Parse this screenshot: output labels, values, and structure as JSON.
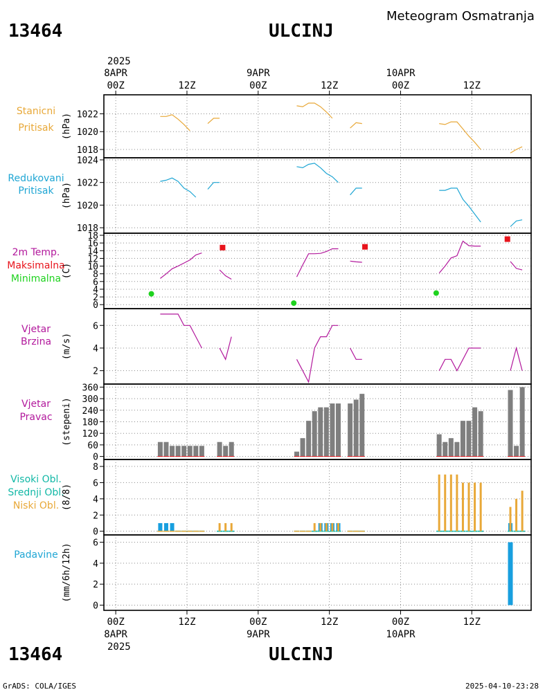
{
  "header": {
    "station_id": "13464",
    "station_name": "ULCINJ",
    "product": "Meteogram Osmatranja"
  },
  "footer": {
    "station_id": "13464",
    "station_name": "ULCINJ",
    "credit": "GrADS: COLA/IGES",
    "timestamp": "2025-04-10-23:28"
  },
  "time_axis": {
    "year": "2025",
    "date_labels": [
      "8APR",
      "9APR",
      "10APR"
    ],
    "hour_labels": [
      "00Z",
      "12Z",
      "00Z",
      "12Z",
      "00Z",
      "12Z"
    ]
  },
  "colors": {
    "orange": "#e8a838",
    "cyan": "#1fa6d4",
    "magenta": "#b2189c",
    "red": "#e8141c",
    "green": "#1ed21e",
    "gray": "#7f7f7f",
    "teal": "#12b8a6",
    "blue": "#189fdf"
  },
  "chart_data": [
    {
      "type": "line",
      "panel": "stanicni",
      "labels": [
        "Stanicni",
        "Pritisak"
      ],
      "unit": "(hPa)",
      "ylim": [
        1017.3,
        1023.9
      ],
      "yticks": [
        1018,
        1020,
        1022
      ],
      "series": [
        {
          "name": "Stanicni Pritisak",
          "color": "#e8a838",
          "segments": [
            [
              [
                7.5,
                1021.7
              ],
              [
                8.5,
                1021.7
              ],
              [
                9.5,
                1021.9
              ],
              [
                10.5,
                1021.4
              ],
              [
                11.5,
                1020.8
              ],
              [
                12.5,
                1020.1
              ]
            ],
            [
              [
                15.5,
                1020.9
              ],
              [
                16.5,
                1021.5
              ],
              [
                17.5,
                1021.5
              ]
            ],
            [
              [
                30.5,
                1022.9
              ],
              [
                31.5,
                1022.8
              ],
              [
                32.5,
                1023.2
              ],
              [
                33.5,
                1023.2
              ],
              [
                34.5,
                1022.8
              ],
              [
                35.5,
                1022.2
              ],
              [
                36.5,
                1021.5
              ]
            ],
            [
              [
                39.5,
                1020.4
              ],
              [
                40.5,
                1021.0
              ],
              [
                41.5,
                1020.9
              ]
            ],
            [
              [
                54.5,
                1020.9
              ],
              [
                55.5,
                1020.8
              ],
              [
                56.5,
                1021.1
              ],
              [
                57.5,
                1021.1
              ],
              [
                58.5,
                1020.3
              ],
              [
                59.5,
                1019.5
              ],
              [
                60.5,
                1018.8
              ],
              [
                61.5,
                1018.0
              ]
            ],
            [
              [
                66.5,
                1017.6
              ],
              [
                67.5,
                1018.0
              ],
              [
                68.5,
                1018.3
              ]
            ]
          ]
        }
      ]
    },
    {
      "type": "line",
      "panel": "redukovani",
      "labels": [
        "Redukovani",
        "Pritisak"
      ],
      "unit": "(hPa)",
      "ylim": [
        1017.7,
        1024.0
      ],
      "yticks": [
        1018,
        1020,
        1022,
        1024
      ],
      "series": [
        {
          "name": "Redukovani Pritisak",
          "color": "#1fa6d4",
          "segments": [
            [
              [
                7.5,
                1022.1
              ],
              [
                8.5,
                1022.2
              ],
              [
                9.5,
                1022.4
              ],
              [
                10.5,
                1022.1
              ],
              [
                11.5,
                1021.5
              ],
              [
                12.5,
                1021.2
              ],
              [
                13.5,
                1020.7
              ]
            ],
            [
              [
                15.5,
                1021.4
              ],
              [
                16.5,
                1022.0
              ],
              [
                17.5,
                1022.0
              ]
            ],
            [
              [
                30.5,
                1023.4
              ],
              [
                31.5,
                1023.3
              ],
              [
                32.5,
                1023.6
              ],
              [
                33.5,
                1023.7
              ],
              [
                34.5,
                1023.3
              ],
              [
                35.5,
                1022.8
              ],
              [
                36.5,
                1022.5
              ],
              [
                37.5,
                1022.0
              ]
            ],
            [
              [
                39.5,
                1020.9
              ],
              [
                40.5,
                1021.5
              ],
              [
                41.5,
                1021.5
              ]
            ],
            [
              [
                54.5,
                1021.3
              ],
              [
                55.5,
                1021.3
              ],
              [
                56.5,
                1021.5
              ],
              [
                57.5,
                1021.5
              ],
              [
                58.5,
                1020.5
              ],
              [
                59.5,
                1019.9
              ],
              [
                60.5,
                1019.2
              ],
              [
                61.5,
                1018.5
              ]
            ],
            [
              [
                66.5,
                1018.1
              ],
              [
                67.5,
                1018.6
              ],
              [
                68.5,
                1018.7
              ]
            ]
          ]
        }
      ]
    },
    {
      "type": "line",
      "panel": "temperature",
      "labels": [
        "2m Temp.",
        "Maksimalna",
        "Minimalna"
      ],
      "unit": "(C)",
      "ylim": [
        -0.5,
        18.0
      ],
      "yticks": [
        0,
        2,
        4,
        6,
        8,
        10,
        12,
        14,
        16,
        18
      ],
      "series": [
        {
          "name": "2m Temp.",
          "color": "#b2189c",
          "segments": [
            [
              [
                7.5,
                6.8
              ],
              [
                8.5,
                8.0
              ],
              [
                9.5,
                9.3
              ],
              [
                10.5,
                10.0
              ],
              [
                11.5,
                10.8
              ],
              [
                12.5,
                11.6
              ],
              [
                13.5,
                12.9
              ],
              [
                14.5,
                13.4
              ]
            ],
            [
              [
                17.5,
                9.0
              ],
              [
                18.5,
                7.5
              ],
              [
                19.5,
                6.6
              ]
            ],
            [
              [
                30.5,
                7.2
              ],
              [
                31.5,
                10.3
              ],
              [
                32.5,
                13.2
              ],
              [
                33.5,
                13.2
              ],
              [
                34.5,
                13.3
              ],
              [
                35.5,
                13.8
              ],
              [
                36.5,
                14.5
              ],
              [
                37.5,
                14.5
              ]
            ],
            [
              [
                39.5,
                11.3
              ],
              [
                40.5,
                11.1
              ],
              [
                41.5,
                11.0
              ]
            ],
            [
              [
                54.5,
                8.2
              ],
              [
                55.5,
                10.0
              ],
              [
                56.5,
                12.1
              ],
              [
                57.5,
                12.7
              ],
              [
                58.5,
                16.5
              ],
              [
                59.5,
                15.3
              ],
              [
                60.5,
                15.2
              ],
              [
                61.5,
                15.2
              ]
            ],
            [
              [
                66.5,
                11.2
              ],
              [
                67.5,
                9.4
              ],
              [
                68.5,
                9.0
              ]
            ]
          ]
        },
        {
          "name": "Maksimalna",
          "color": "#e8141c",
          "marker": "square",
          "points": [
            [
              18.0,
              14.8
            ],
            [
              42.0,
              15.0
            ],
            [
              66.0,
              17.0
            ]
          ]
        },
        {
          "name": "Minimalna",
          "color": "#1ed21e",
          "marker": "circle",
          "points": [
            [
              6.0,
              2.8
            ],
            [
              30.0,
              0.4
            ],
            [
              54.0,
              3.0
            ]
          ]
        }
      ]
    },
    {
      "type": "line",
      "panel": "wind_speed",
      "labels": [
        "Vjetar",
        "Brzina"
      ],
      "unit": "(m/s)",
      "ylim": [
        1.0,
        7.3
      ],
      "yticks": [
        2,
        4,
        6
      ],
      "series": [
        {
          "name": "Vjetar Brzina",
          "color": "#b2189c",
          "segments": [
            [
              [
                7.5,
                7.0
              ],
              [
                8.5,
                7.0
              ],
              [
                9.5,
                7.0
              ],
              [
                10.5,
                7.0
              ],
              [
                11.5,
                6.0
              ],
              [
                12.5,
                6.0
              ],
              [
                13.5,
                5.0
              ],
              [
                14.5,
                4.0
              ]
            ],
            [
              [
                17.5,
                4.0
              ],
              [
                18.5,
                3.0
              ],
              [
                19.5,
                5.0
              ]
            ],
            [
              [
                30.5,
                3.0
              ],
              [
                31.5,
                2.0
              ],
              [
                32.5,
                1.0
              ],
              [
                33.5,
                4.0
              ],
              [
                34.5,
                5.0
              ],
              [
                35.5,
                5.0
              ],
              [
                36.5,
                6.0
              ],
              [
                37.5,
                6.0
              ]
            ],
            [
              [
                39.5,
                4.0
              ],
              [
                40.5,
                3.0
              ],
              [
                41.5,
                3.0
              ]
            ],
            [
              [
                54.5,
                2.0
              ],
              [
                55.5,
                3.0
              ],
              [
                56.5,
                3.0
              ],
              [
                57.5,
                2.0
              ],
              [
                58.5,
                3.0
              ],
              [
                59.5,
                4.0
              ],
              [
                60.5,
                4.0
              ],
              [
                61.5,
                4.0
              ]
            ],
            [
              [
                66.5,
                2.0
              ],
              [
                67.5,
                4.0
              ],
              [
                68.5,
                2.0
              ]
            ]
          ]
        }
      ]
    },
    {
      "type": "bar",
      "panel": "wind_direction",
      "labels": [
        "Vjetar",
        "Pravac"
      ],
      "unit": "(stepeni)",
      "ylim": [
        -5,
        365
      ],
      "yticks": [
        0,
        60,
        120,
        180,
        240,
        300,
        360
      ],
      "series": [
        {
          "name": "Vjetar Pravac",
          "color": "#7f7f7f",
          "x": [
            7.5,
            8.5,
            9.5,
            10.5,
            11.5,
            12.5,
            13.5,
            14.5,
            17.5,
            18.5,
            19.5,
            30.5,
            31.5,
            32.5,
            33.5,
            34.5,
            35.5,
            36.5,
            37.5,
            39.5,
            40.5,
            41.5,
            54.5,
            55.5,
            56.5,
            57.5,
            58.5,
            59.5,
            60.5,
            61.5,
            66.5,
            67.5,
            68.5
          ],
          "values": [
            75,
            75,
            55,
            55,
            55,
            55,
            55,
            55,
            75,
            55,
            75,
            25,
            95,
            185,
            235,
            255,
            255,
            275,
            275,
            275,
            295,
            325,
            115,
            75,
            95,
            75,
            185,
            185,
            255,
            235,
            345,
            55,
            360
          ]
        }
      ]
    },
    {
      "type": "bar",
      "panel": "clouds",
      "labels": [
        "Visoki Obl.",
        "Srednji Obl.",
        "Niski Obl."
      ],
      "unit": "(8/8)",
      "ylim": [
        -0.2,
        8.6
      ],
      "yticks": [
        0,
        2,
        4,
        6,
        8
      ],
      "series": [
        {
          "name": "Visoki Obl.",
          "color": "#189fdf",
          "x": [
            7.5,
            8.5,
            9.5,
            10.5,
            11.5,
            12.5,
            13.5,
            14.5,
            17.5,
            18.5,
            19.5,
            30.5,
            31.5,
            32.5,
            33.5,
            34.5,
            35.5,
            36.5,
            37.5,
            39.5,
            40.5,
            41.5,
            54.5,
            55.5,
            56.5,
            57.5,
            58.5,
            59.5,
            60.5,
            61.5,
            66.5,
            67.5,
            68.5
          ],
          "values": [
            1,
            1,
            1,
            0,
            0,
            0,
            0,
            0,
            0,
            0,
            0,
            0,
            0,
            0,
            0,
            1,
            1,
            1,
            1,
            0,
            0,
            0,
            0,
            0,
            0,
            0,
            0,
            0,
            0,
            0,
            1,
            0,
            0
          ]
        },
        {
          "name": "Srednji Obl.",
          "color": "#12b8a6",
          "x": [
            7.5,
            8.5,
            9.5,
            10.5,
            11.5,
            12.5,
            13.5,
            14.5,
            17.5,
            18.5,
            19.5,
            30.5,
            31.5,
            32.5,
            33.5,
            34.5,
            35.5,
            36.5,
            37.5,
            39.5,
            40.5,
            41.5,
            54.5,
            55.5,
            56.5,
            57.5,
            58.5,
            59.5,
            60.5,
            61.5,
            66.5,
            67.5,
            68.5
          ],
          "values": [
            0,
            0,
            0,
            0,
            0,
            0,
            0,
            0,
            0,
            0,
            0,
            0,
            0,
            0,
            0,
            0,
            0,
            0,
            0,
            0,
            0,
            0,
            0,
            0,
            0,
            0,
            0,
            0,
            0,
            0,
            0,
            0,
            0
          ]
        },
        {
          "name": "Niski Obl.",
          "color": "#e8a838",
          "x": [
            7.5,
            8.5,
            9.5,
            10.5,
            11.5,
            12.5,
            13.5,
            14.5,
            17.5,
            18.5,
            19.5,
            30.5,
            31.5,
            32.5,
            33.5,
            34.5,
            35.5,
            36.5,
            37.5,
            39.5,
            40.5,
            41.5,
            54.5,
            55.5,
            56.5,
            57.5,
            58.5,
            59.5,
            60.5,
            61.5,
            66.5,
            67.5,
            68.5
          ],
          "values": [
            0,
            0,
            0,
            0,
            0,
            0,
            0,
            0,
            1,
            1,
            1,
            0,
            0,
            0,
            1,
            1,
            1,
            1,
            1,
            0,
            0,
            0,
            7,
            7,
            7,
            7,
            6,
            6,
            6,
            6,
            3,
            4,
            5
          ]
        }
      ]
    },
    {
      "type": "bar",
      "panel": "precipitation",
      "labels": [
        "Padavine"
      ],
      "unit": "(mm/6h/12h)",
      "ylim": [
        -0.3,
        6.5
      ],
      "yticks": [
        0,
        2,
        4,
        6
      ],
      "series": [
        {
          "name": "Padavine",
          "color": "#189fdf",
          "x": [
            66.5
          ],
          "values": [
            6.0
          ]
        }
      ]
    }
  ]
}
